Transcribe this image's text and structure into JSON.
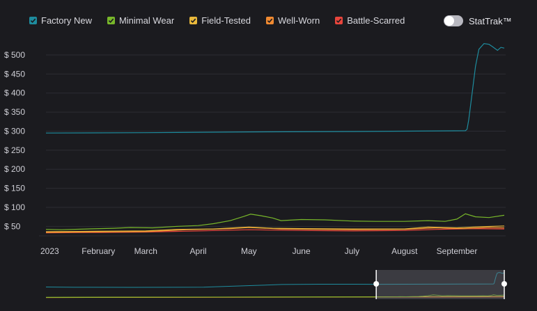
{
  "legend": {
    "items": [
      {
        "label": "Factory New",
        "color": "#1e8c9e"
      },
      {
        "label": "Minimal Wear",
        "color": "#78b72a"
      },
      {
        "label": "Field-Tested",
        "color": "#e9b83b"
      },
      {
        "label": "Well-Worn",
        "color": "#f08a31"
      },
      {
        "label": "Battle-Scarred",
        "color": "#e8453c"
      }
    ]
  },
  "toggle": {
    "label": "StatTrak™",
    "on": false
  },
  "chart_data": {
    "type": "line",
    "ylim": [
      25,
      540
    ],
    "yticks": [
      50,
      100,
      150,
      200,
      250,
      300,
      350,
      400,
      450,
      500
    ],
    "ytick_labels": [
      "$ 50",
      "$ 100",
      "$ 150",
      "$ 200",
      "$ 250",
      "$ 300",
      "$ 350",
      "$ 400",
      "$ 450",
      "$ 500"
    ],
    "x_start": "2023-01-01",
    "x_end": "2023-09-29",
    "xticks": [
      "2023-01-01",
      "2023-02-01",
      "2023-03-01",
      "2023-04-01",
      "2023-05-01",
      "2023-06-01",
      "2023-07-01",
      "2023-08-01",
      "2023-09-01"
    ],
    "xtick_labels": [
      "2023",
      "February",
      "March",
      "April",
      "May",
      "June",
      "July",
      "August",
      "September"
    ],
    "grid": true,
    "series": [
      {
        "name": "Factory New",
        "color": "#1e8c9e",
        "points": [
          [
            "2023-01-01",
            295
          ],
          [
            "2023-03-01",
            296
          ],
          [
            "2023-05-01",
            298
          ],
          [
            "2023-07-01",
            299
          ],
          [
            "2023-08-01",
            300
          ],
          [
            "2023-09-06",
            301
          ],
          [
            "2023-09-07",
            305
          ],
          [
            "2023-09-08",
            330
          ],
          [
            "2023-09-10",
            400
          ],
          [
            "2023-09-12",
            470
          ],
          [
            "2023-09-14",
            515
          ],
          [
            "2023-09-17",
            530
          ],
          [
            "2023-09-20",
            528
          ],
          [
            "2023-09-22",
            522
          ],
          [
            "2023-09-25",
            512
          ],
          [
            "2023-09-27",
            520
          ],
          [
            "2023-09-29",
            518
          ]
        ]
      },
      {
        "name": "Minimal Wear",
        "color": "#78b72a",
        "points": [
          [
            "2023-01-01",
            42
          ],
          [
            "2023-01-10",
            41
          ],
          [
            "2023-01-25",
            43
          ],
          [
            "2023-02-10",
            45
          ],
          [
            "2023-02-20",
            47
          ],
          [
            "2023-03-05",
            46
          ],
          [
            "2023-03-20",
            50
          ],
          [
            "2023-04-01",
            52
          ],
          [
            "2023-04-10",
            57
          ],
          [
            "2023-04-20",
            65
          ],
          [
            "2023-04-28",
            76
          ],
          [
            "2023-05-02",
            82
          ],
          [
            "2023-05-08",
            78
          ],
          [
            "2023-05-15",
            72
          ],
          [
            "2023-05-20",
            65
          ],
          [
            "2023-06-01",
            68
          ],
          [
            "2023-06-15",
            67
          ],
          [
            "2023-07-01",
            64
          ],
          [
            "2023-07-15",
            63
          ],
          [
            "2023-08-01",
            63
          ],
          [
            "2023-08-15",
            65
          ],
          [
            "2023-08-25",
            63
          ],
          [
            "2023-09-01",
            69
          ],
          [
            "2023-09-06",
            83
          ],
          [
            "2023-09-12",
            75
          ],
          [
            "2023-09-20",
            73
          ],
          [
            "2023-09-29",
            79
          ]
        ]
      },
      {
        "name": "Field-Tested",
        "color": "#e9b83b",
        "points": [
          [
            "2023-01-01",
            36
          ],
          [
            "2023-02-01",
            37
          ],
          [
            "2023-03-01",
            38
          ],
          [
            "2023-03-20",
            42
          ],
          [
            "2023-04-10",
            43
          ],
          [
            "2023-05-01",
            48
          ],
          [
            "2023-05-15",
            45
          ],
          [
            "2023-06-01",
            44
          ],
          [
            "2023-07-01",
            43
          ],
          [
            "2023-08-01",
            43
          ],
          [
            "2023-08-15",
            48
          ],
          [
            "2023-09-01",
            46
          ],
          [
            "2023-09-15",
            49
          ],
          [
            "2023-09-29",
            51
          ]
        ]
      },
      {
        "name": "Well-Worn",
        "color": "#f08a31",
        "points": [
          [
            "2023-01-01",
            34
          ],
          [
            "2023-02-01",
            35
          ],
          [
            "2023-03-01",
            36
          ],
          [
            "2023-03-25",
            41
          ],
          [
            "2023-04-20",
            44
          ],
          [
            "2023-05-01",
            47
          ],
          [
            "2023-05-20",
            43
          ],
          [
            "2023-06-10",
            42
          ],
          [
            "2023-07-05",
            41
          ],
          [
            "2023-08-01",
            42
          ],
          [
            "2023-08-20",
            46
          ],
          [
            "2023-09-05",
            44
          ],
          [
            "2023-09-20",
            47
          ],
          [
            "2023-09-29",
            46
          ]
        ]
      },
      {
        "name": "Battle-Scarred",
        "color": "#e8453c",
        "points": [
          [
            "2023-01-01",
            33
          ],
          [
            "2023-02-01",
            34
          ],
          [
            "2023-03-01",
            35
          ],
          [
            "2023-04-01",
            38
          ],
          [
            "2023-05-01",
            41
          ],
          [
            "2023-06-01",
            39
          ],
          [
            "2023-07-01",
            38
          ],
          [
            "2023-08-01",
            39
          ],
          [
            "2023-08-20",
            42
          ],
          [
            "2023-09-10",
            44
          ],
          [
            "2023-09-29",
            43
          ]
        ]
      }
    ],
    "navigator": {
      "selection_start": "2023-01-01",
      "selection_end": "2023-09-29",
      "full_start": "2021-02-01",
      "full_end": "2023-09-29"
    }
  }
}
